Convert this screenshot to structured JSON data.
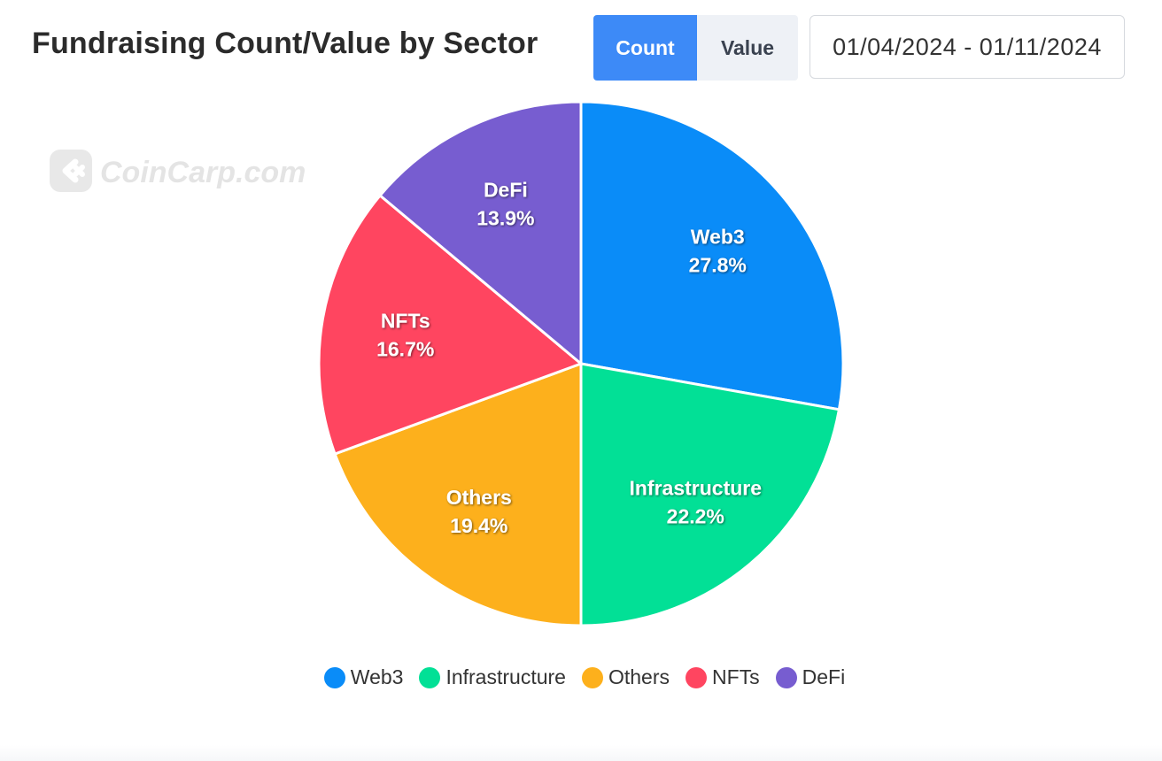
{
  "header": {
    "title": "Fundraising Count/Value by Sector",
    "toggle": {
      "count_label": "Count",
      "value_label": "Value",
      "selected": "Count"
    },
    "date_range": "01/04/2024 - 01/11/2024"
  },
  "watermark": {
    "text": "CoinCarp.com"
  },
  "chart_data": {
    "type": "pie",
    "slices": [
      {
        "label": "Web3",
        "percent": 27.8,
        "percent_label": "27.8%",
        "color": "#0a8cf8"
      },
      {
        "label": "Infrastructure",
        "percent": 22.2,
        "percent_label": "22.2%",
        "color": "#02e096"
      },
      {
        "label": "Others",
        "percent": 19.4,
        "percent_label": "19.4%",
        "color": "#fdb01c"
      },
      {
        "label": "NFTs",
        "percent": 16.7,
        "percent_label": "16.7%",
        "color": "#ff4560"
      },
      {
        "label": "DeFi",
        "percent": 13.9,
        "percent_label": "13.9%",
        "color": "#775dd0"
      }
    ],
    "legend_position": "bottom"
  }
}
